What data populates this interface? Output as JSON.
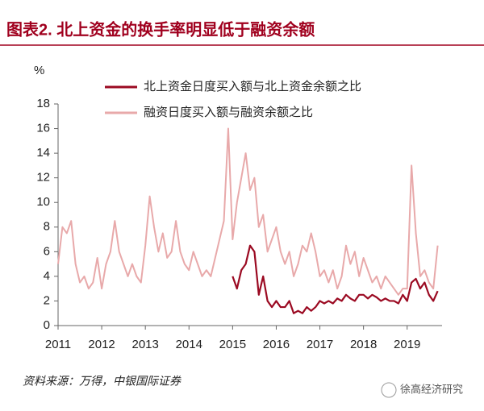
{
  "chart_data": {
    "type": "line",
    "title": "图表2. 北上资金的换手率明显低于融资余额",
    "y_label": "%",
    "source": "资料来源：万得，中银国际证券",
    "watermark": "徐高经济研究",
    "xlim": [
      2011,
      2019.8
    ],
    "xticks": [
      2011,
      2012,
      2013,
      2014,
      2015,
      2016,
      2017,
      2018,
      2019
    ],
    "ylim": [
      0,
      18
    ],
    "yticks": [
      0,
      2,
      4,
      6,
      8,
      10,
      12,
      14,
      16,
      18
    ],
    "grid": false,
    "legend": "top",
    "x": [
      2011.0,
      2011.1,
      2011.2,
      2011.3,
      2011.4,
      2011.5,
      2011.6,
      2011.7,
      2011.8,
      2011.9,
      2012.0,
      2012.1,
      2012.2,
      2012.3,
      2012.4,
      2012.5,
      2012.6,
      2012.7,
      2012.8,
      2012.9,
      2013.0,
      2013.1,
      2013.2,
      2013.3,
      2013.4,
      2013.5,
      2013.6,
      2013.7,
      2013.8,
      2013.9,
      2014.0,
      2014.1,
      2014.2,
      2014.3,
      2014.4,
      2014.5,
      2014.6,
      2014.7,
      2014.8,
      2014.9,
      2015.0,
      2015.1,
      2015.2,
      2015.3,
      2015.4,
      2015.5,
      2015.6,
      2015.7,
      2015.8,
      2015.9,
      2016.0,
      2016.1,
      2016.2,
      2016.3,
      2016.4,
      2016.5,
      2016.6,
      2016.7,
      2016.8,
      2016.9,
      2017.0,
      2017.1,
      2017.2,
      2017.3,
      2017.4,
      2017.5,
      2017.6,
      2017.7,
      2017.8,
      2017.9,
      2018.0,
      2018.1,
      2018.2,
      2018.3,
      2018.4,
      2018.5,
      2018.6,
      2018.7,
      2018.8,
      2018.9,
      2019.0,
      2019.1,
      2019.2,
      2019.3,
      2019.4,
      2019.5,
      2019.6,
      2019.7
    ],
    "series": [
      {
        "name": "北上资金日度买入额与北上资金余额之比",
        "color": "#9b0a22",
        "width": 2.2,
        "values": [
          null,
          null,
          null,
          null,
          null,
          null,
          null,
          null,
          null,
          null,
          null,
          null,
          null,
          null,
          null,
          null,
          null,
          null,
          null,
          null,
          null,
          null,
          null,
          null,
          null,
          null,
          null,
          null,
          null,
          null,
          null,
          null,
          null,
          null,
          null,
          null,
          null,
          null,
          null,
          null,
          4,
          3,
          4.5,
          5,
          6.5,
          6,
          2.5,
          4,
          2,
          1.5,
          2,
          1.5,
          1.5,
          2,
          1,
          1.2,
          1,
          1.5,
          1.2,
          1.5,
          2,
          1.8,
          2,
          1.8,
          2.2,
          2,
          2.5,
          2.2,
          2,
          2.5,
          2.5,
          2.2,
          2.5,
          2.3,
          2,
          2.2,
          2,
          2,
          1.8,
          2.5,
          2,
          3.5,
          3.8,
          3,
          3.5,
          2.5,
          2,
          2.8
        ]
      },
      {
        "name": "融资日度买入额与融资余额之比",
        "color": "#e8a9aa",
        "width": 2,
        "values": [
          5,
          8,
          7.5,
          8.5,
          5,
          3.5,
          4,
          3,
          3.5,
          5.5,
          3,
          5,
          6,
          8.5,
          6,
          5,
          4,
          5,
          4,
          3.5,
          6.5,
          10.5,
          8,
          6,
          7.5,
          5.5,
          6,
          8.5,
          6,
          5,
          4.5,
          6,
          5,
          4,
          4.5,
          4,
          5.5,
          7,
          8.5,
          16,
          7,
          10,
          12,
          14,
          11,
          12,
          8,
          9,
          6,
          7,
          8,
          6,
          5,
          6,
          4,
          5,
          6.5,
          6,
          7.5,
          6,
          4,
          4.5,
          3.5,
          4.5,
          3,
          4,
          6.5,
          5,
          6,
          4,
          5.5,
          4.5,
          3.5,
          4,
          3,
          4,
          3.5,
          3,
          2.5,
          3,
          3,
          13,
          7.5,
          4,
          4.5,
          3.5,
          3,
          6.5
        ]
      }
    ]
  }
}
